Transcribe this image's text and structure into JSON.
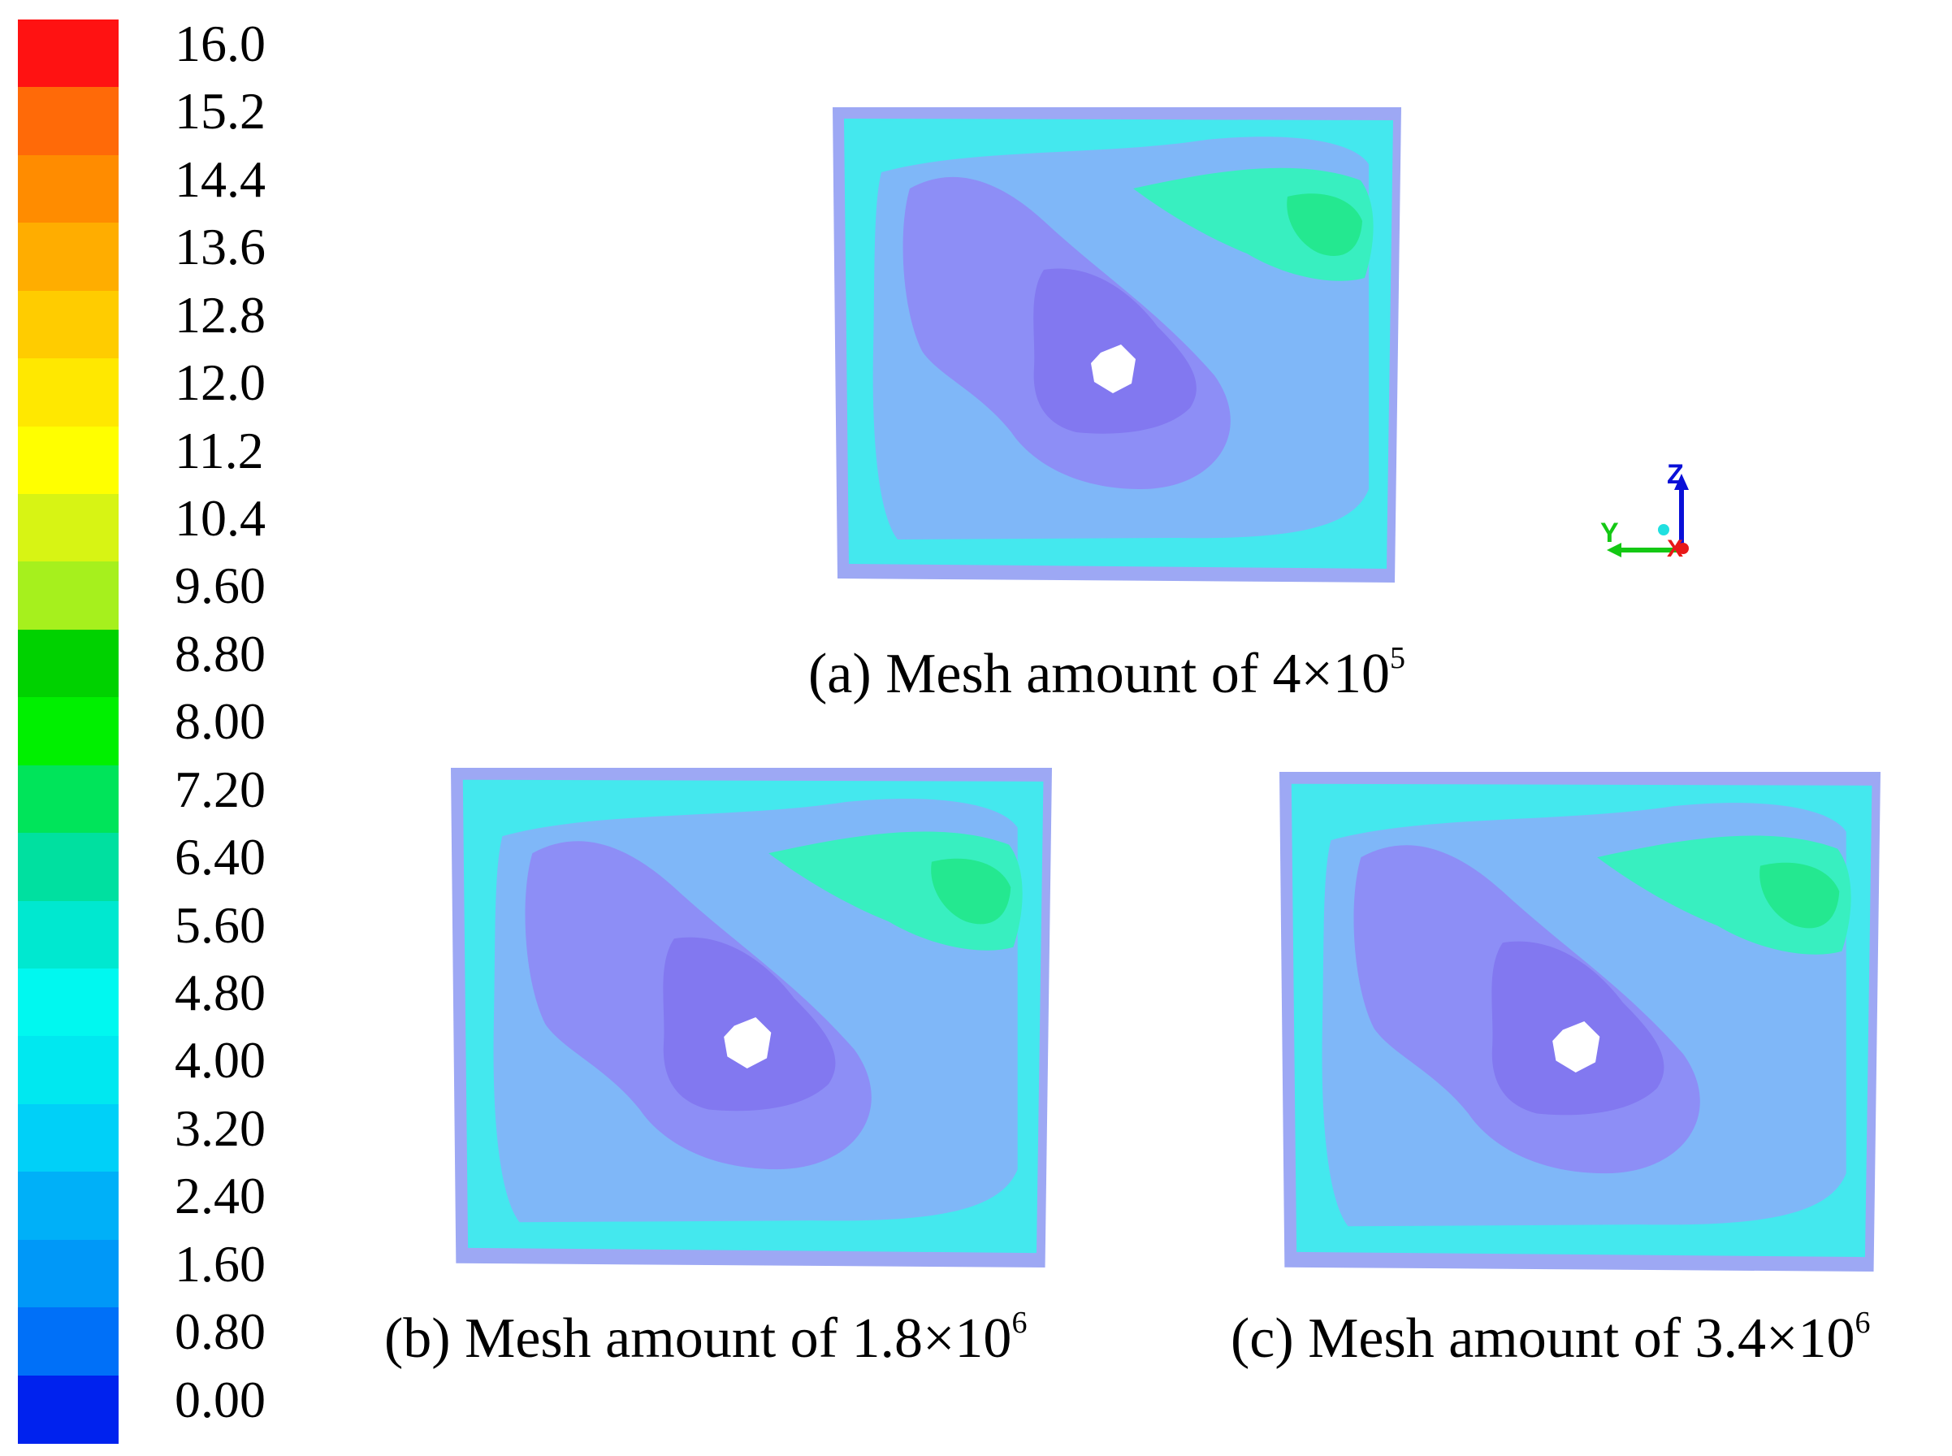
{
  "legend": {
    "ticks": [
      "16.0",
      "15.2",
      "14.4",
      "13.6",
      "12.8",
      "12.0",
      "11.2",
      "10.4",
      "9.60",
      "8.80",
      "8.00",
      "7.20",
      "6.40",
      "5.60",
      "4.80",
      "4.00",
      "3.20",
      "2.40",
      "1.60",
      "0.80",
      "0.00"
    ],
    "colors": [
      "#ff1212",
      "#ff6a08",
      "#ff8c00",
      "#ffad00",
      "#ffcc00",
      "#ffe800",
      "#ffff00",
      "#d7f414",
      "#a6f01d",
      "#00d200",
      "#00f000",
      "#00e45a",
      "#00e0a0",
      "#00e8d0",
      "#00f8f0",
      "#00e8f0",
      "#00d0f8",
      "#00b0f8",
      "#0098f8",
      "#0070f8",
      "#0022ee"
    ]
  },
  "panels": [
    {
      "id": "a",
      "caption_text": "(a) Mesh amount of 4×10",
      "exponent": "5"
    },
    {
      "id": "b",
      "caption_text": "(b) Mesh amount of 1.8×10",
      "exponent": "6"
    },
    {
      "id": "c",
      "caption_text": "(c) Mesh amount of 3.4×10",
      "exponent": "6"
    }
  ],
  "axes_triad": {
    "z": "Z",
    "y": "Y",
    "x": "X"
  },
  "contour_colors": {
    "edge": "#9da8f4",
    "outer": "#44e8ee",
    "mid": "#7fb7f8",
    "low": "#8d8ef6",
    "core": "#8278f0",
    "hot": "#38efc0",
    "peak": "#24e890"
  }
}
